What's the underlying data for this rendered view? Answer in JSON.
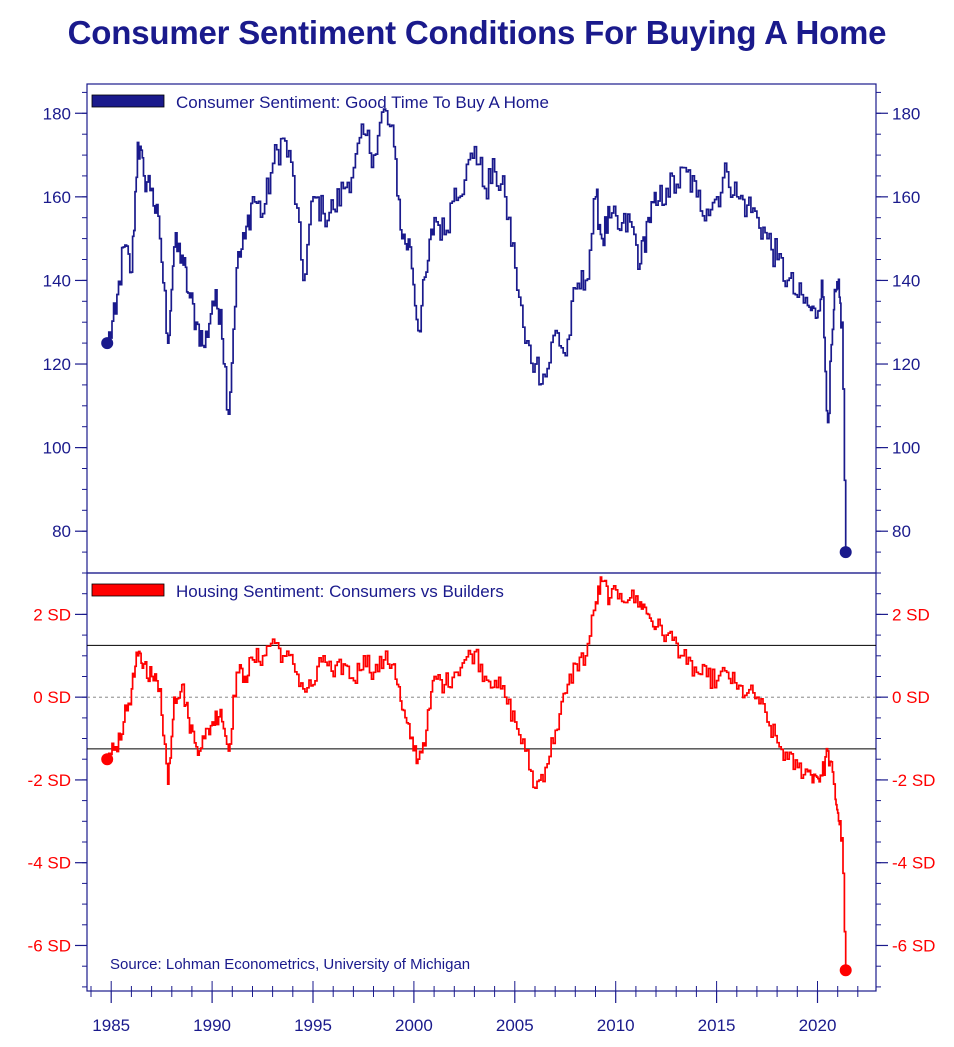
{
  "title": "Consumer Sentiment Conditions For Buying A Home",
  "source": "Source: Lohman Econometrics, University of Michigan",
  "colors": {
    "axis": "#1a1a8c",
    "series_top": "#1a1a8c",
    "series_bottom": "#ff0000",
    "ref_lines": "#000000"
  },
  "chart_data": [
    {
      "type": "line",
      "panel": "top",
      "title": "",
      "legend": "Consumer Sentiment: Good Time To Buy A Home",
      "ylim": [
        70,
        187
      ],
      "yticks": [
        80,
        100,
        120,
        140,
        160,
        180
      ],
      "ytick_labels": [
        "80",
        "100",
        "120",
        "140",
        "160",
        "180"
      ],
      "series": [
        {
          "name": "Consumer Sentiment: Good Time To Buy A Home",
          "x": [
            1984.8,
            1985.2,
            1985.6,
            1986.0,
            1986.3,
            1986.6,
            1987.0,
            1987.4,
            1987.8,
            1988.1,
            1988.5,
            1988.8,
            1989.2,
            1989.6,
            1990.0,
            1990.4,
            1990.8,
            1991.2,
            1991.6,
            1992.0,
            1992.5,
            1993.0,
            1993.5,
            1994.0,
            1994.5,
            1995.0,
            1995.5,
            1996.0,
            1996.5,
            1997.0,
            1997.5,
            1998.0,
            1998.5,
            1999.0,
            1999.4,
            1999.8,
            2000.2,
            2000.6,
            2001.0,
            2001.5,
            2002.0,
            2002.5,
            2003.0,
            2003.5,
            2004.0,
            2004.5,
            2005.0,
            2005.5,
            2006.0,
            2006.5,
            2007.0,
            2007.5,
            2008.0,
            2008.5,
            2009.0,
            2009.3,
            2009.7,
            2010.2,
            2010.7,
            2011.2,
            2011.6,
            2012.0,
            2012.5,
            2013.0,
            2013.5,
            2014.0,
            2014.5,
            2015.0,
            2015.5,
            2016.0,
            2016.5,
            2017.0,
            2017.5,
            2018.0,
            2018.5,
            2019.0,
            2019.5,
            2019.9,
            2020.2,
            2020.5,
            2020.8,
            2021.0,
            2021.2,
            2021.4
          ],
          "values": [
            125,
            132,
            148,
            142,
            173,
            165,
            162,
            150,
            125,
            148,
            146,
            137,
            130,
            124,
            135,
            133,
            108,
            143,
            150,
            160,
            156,
            168,
            174,
            165,
            140,
            160,
            156,
            157,
            162,
            167,
            175,
            170,
            181,
            172,
            150,
            148,
            128,
            142,
            155,
            151,
            162,
            164,
            172,
            162,
            166,
            160,
            143,
            125,
            120,
            117,
            128,
            122,
            138,
            140,
            160,
            150,
            155,
            152,
            154,
            144,
            155,
            158,
            162,
            163,
            166,
            160,
            157,
            160,
            166,
            160,
            158,
            155,
            150,
            145,
            140,
            136,
            134,
            131,
            140,
            106,
            133,
            138,
            130,
            75
          ]
        }
      ]
    },
    {
      "type": "line",
      "panel": "bottom",
      "title": "",
      "legend": "Housing Sentiment: Consumers vs Builders",
      "ylim": [
        -7.1,
        3.0
      ],
      "yticks": [
        -6,
        -4,
        -2,
        0,
        2
      ],
      "ytick_labels": [
        "-6 SD",
        "-4 SD",
        "-2 SD",
        "0 SD",
        "2 SD"
      ],
      "reference_lines": [
        1.25,
        0,
        -1.25
      ],
      "series": [
        {
          "name": "Housing Sentiment: Consumers vs Builders",
          "x": [
            1984.8,
            1985.2,
            1985.6,
            1986.0,
            1986.3,
            1986.6,
            1987.0,
            1987.4,
            1987.8,
            1988.1,
            1988.5,
            1988.8,
            1989.2,
            1989.6,
            1990.0,
            1990.4,
            1990.8,
            1991.2,
            1991.6,
            1992.0,
            1992.5,
            1993.0,
            1993.5,
            1994.0,
            1994.5,
            1995.0,
            1995.5,
            1996.0,
            1996.5,
            1997.0,
            1997.5,
            1998.0,
            1998.5,
            1999.0,
            1999.4,
            1999.8,
            2000.2,
            2000.6,
            2001.0,
            2001.5,
            2002.0,
            2002.5,
            2003.0,
            2003.5,
            2004.0,
            2004.5,
            2005.0,
            2005.5,
            2006.0,
            2006.5,
            2007.0,
            2007.5,
            2008.0,
            2008.5,
            2009.0,
            2009.3,
            2009.7,
            2010.2,
            2010.7,
            2011.2,
            2011.6,
            2012.0,
            2012.5,
            2013.0,
            2013.5,
            2014.0,
            2014.5,
            2015.0,
            2015.5,
            2016.0,
            2016.5,
            2017.0,
            2017.5,
            2018.0,
            2018.5,
            2019.0,
            2019.5,
            2019.9,
            2020.2,
            2020.5,
            2020.8,
            2021.0,
            2021.2,
            2021.4
          ],
          "values": [
            -1.5,
            -1.2,
            -0.6,
            0.2,
            1.0,
            0.8,
            0.5,
            0.2,
            -2.1,
            0.0,
            0.3,
            -0.5,
            -1.2,
            -1.0,
            -0.6,
            -0.3,
            -1.3,
            0.6,
            0.5,
            0.9,
            1.0,
            1.4,
            1.0,
            0.8,
            0.2,
            0.3,
            1.0,
            0.5,
            0.8,
            0.4,
            1.0,
            0.6,
            0.9,
            0.8,
            -0.3,
            -1.0,
            -1.5,
            -0.8,
            0.5,
            0.3,
            0.6,
            0.9,
            1.1,
            0.5,
            0.4,
            0.0,
            -0.6,
            -1.3,
            -2.2,
            -1.7,
            -0.8,
            0.1,
            0.8,
            1.0,
            2.3,
            2.8,
            2.4,
            2.5,
            2.4,
            2.3,
            2.0,
            1.7,
            1.5,
            1.3,
            0.8,
            0.6,
            0.5,
            0.4,
            0.6,
            0.2,
            0.1,
            0.0,
            -0.6,
            -1.1,
            -1.5,
            -1.7,
            -1.8,
            -1.9,
            -1.9,
            -1.3,
            -2.1,
            -2.8,
            -3.4,
            -6.6
          ]
        }
      ]
    }
  ],
  "x_axis": {
    "range": [
      1983.8,
      2022.9
    ],
    "ticks": [
      1985,
      1990,
      1995,
      2000,
      2005,
      2010,
      2015,
      2020
    ],
    "tick_labels": [
      "1985",
      "1990",
      "1995",
      "2000",
      "2005",
      "2010",
      "2015",
      "2020"
    ]
  }
}
